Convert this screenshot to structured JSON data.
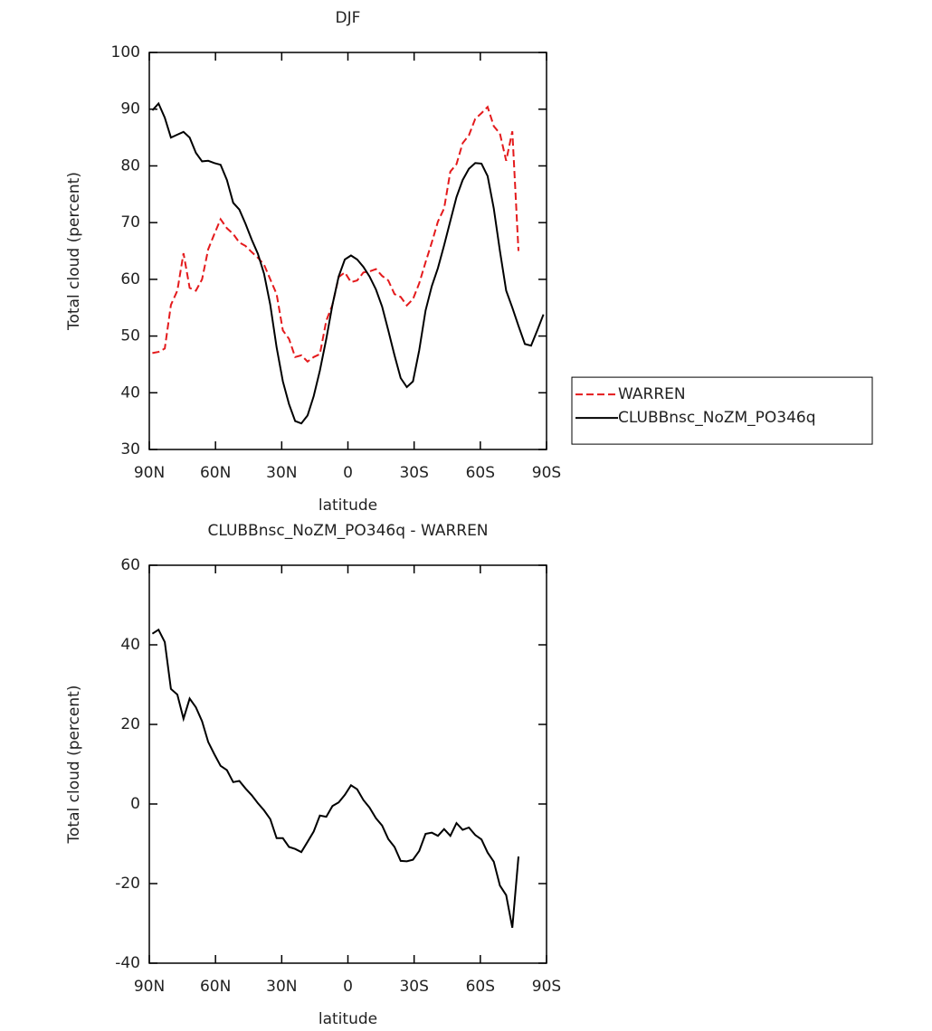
{
  "chart_data": [
    {
      "type": "line",
      "title": "DJF",
      "xlabel": "latitude",
      "ylabel": "Total cloud (percent)",
      "x": [
        88.6,
        85.8,
        83.0,
        80.2,
        77.3,
        74.5,
        71.7,
        68.9,
        66.1,
        63.3,
        60.5,
        57.7,
        54.8,
        52.0,
        49.2,
        46.4,
        43.6,
        40.8,
        38.0,
        35.2,
        32.3,
        29.5,
        26.7,
        23.9,
        21.1,
        18.3,
        15.5,
        12.7,
        9.8,
        7.0,
        4.2,
        1.4,
        -1.4,
        -4.2,
        -7.0,
        -9.8,
        -12.7,
        -15.5,
        -18.3,
        -21.1,
        -23.9,
        -26.7,
        -29.5,
        -32.3,
        -35.2,
        -38.0,
        -40.8,
        -43.6,
        -46.4,
        -49.2,
        -52.0,
        -54.8,
        -57.7,
        -60.5,
        -63.3,
        -66.1,
        -68.9,
        -71.7,
        -74.5,
        -77.3,
        -80.2,
        -83.0,
        -85.8,
        -88.6
      ],
      "series": [
        {
          "name": "WARREN",
          "color": "#e41a1c",
          "dashed": true,
          "values": [
            47,
            47.2,
            47.8,
            55.5,
            58,
            64.6,
            58.5,
            58,
            60,
            65.3,
            68,
            70.6,
            69,
            68,
            66.5,
            65.9,
            64.8,
            63.8,
            62.6,
            60,
            57.4,
            51,
            49.5,
            46.3,
            46.6,
            45.5,
            46.3,
            46.8,
            52.7,
            55.5,
            60.4,
            61.2,
            59.5,
            59.8,
            61.2,
            61.4,
            61.8,
            60.6,
            59.8,
            57.4,
            56.9,
            55.4,
            56.5,
            59.3,
            63,
            66.5,
            70.2,
            72.5,
            79,
            80.3,
            84,
            85.4,
            88.3,
            89.3,
            90.4,
            87,
            85.7,
            80.9,
            86.1,
            65,
            null,
            null,
            null,
            null
          ]
        },
        {
          "name": "CLUBBnsc_NoZM_PO346q",
          "color": "#000000",
          "dashed": false,
          "values": [
            89.8,
            91,
            88.5,
            85,
            85.5,
            86,
            85,
            82.3,
            80.8,
            80.9,
            80.5,
            80.2,
            77.5,
            73.5,
            72.3,
            69.8,
            67,
            64.5,
            61,
            55.5,
            48,
            42,
            38,
            35,
            34.6,
            36,
            39.4,
            43.9,
            49.5,
            55.5,
            60.5,
            63.5,
            64.2,
            63.5,
            62.2,
            60.5,
            58.2,
            55.2,
            51,
            46.6,
            42.6,
            41,
            42,
            47.5,
            54.5,
            58.8,
            62,
            66,
            70.3,
            74.5,
            77.5,
            79.5,
            80.5,
            80.4,
            78.2,
            72.5,
            65,
            58,
            55,
            51.8,
            48.6,
            48.3,
            51,
            53.8
          ]
        }
      ],
      "xlim": [
        90,
        -90
      ],
      "xticks": [
        {
          "value": 90,
          "label": "90N"
        },
        {
          "value": 60,
          "label": "60N"
        },
        {
          "value": 30,
          "label": "30N"
        },
        0,
        {
          "value": -30,
          "label": "30S"
        },
        {
          "value": -60,
          "label": "60S"
        },
        {
          "value": -90,
          "label": "90S"
        }
      ],
      "ylim": [
        30,
        100
      ],
      "yticks": [
        30,
        40,
        50,
        60,
        70,
        80,
        90,
        100
      ],
      "legend": "right"
    },
    {
      "type": "line",
      "title": "CLUBBnsc_NoZM_PO346q - WARREN",
      "xlabel": "latitude",
      "ylabel": "Total cloud (percent)",
      "x": [
        88.6,
        85.8,
        83.0,
        80.2,
        77.3,
        74.5,
        71.7,
        68.9,
        66.1,
        63.3,
        60.5,
        57.7,
        54.8,
        52.0,
        49.2,
        46.4,
        43.6,
        40.8,
        38.0,
        35.2,
        32.3,
        29.5,
        26.7,
        23.9,
        21.1,
        18.3,
        15.5,
        12.7,
        9.8,
        7.0,
        4.2,
        1.4,
        -1.4,
        -4.2,
        -7.0,
        -9.8,
        -12.7,
        -15.5,
        -18.3,
        -21.1,
        -23.9,
        -26.7,
        -29.5,
        -32.3,
        -35.2,
        -38.0,
        -40.8,
        -43.6,
        -46.4,
        -49.2,
        -52.0,
        -54.8,
        -57.7,
        -60.5,
        -63.3,
        -66.1,
        -68.9,
        -71.7,
        -74.5,
        -77.3,
        -80.2,
        -83.0,
        -85.8,
        -88.6
      ],
      "series": [
        {
          "color": "#000000",
          "dashed": false,
          "values": [
            42.8,
            43.8,
            40.7,
            28.9,
            27.5,
            21.4,
            26.5,
            24.3,
            20.8,
            15.6,
            12.5,
            9.6,
            8.5,
            5.5,
            5.8,
            3.9,
            2.2,
            0.2,
            -1.6,
            -3.8,
            -8.6,
            -8.6,
            -10.8,
            -11.3,
            -12.1,
            -9.5,
            -6.9,
            -2.9,
            -3.2,
            -0.5,
            0.4,
            2.3,
            4.7,
            3.7,
            1,
            -0.9,
            -3.6,
            -5.4,
            -8.8,
            -10.8,
            -14.3,
            -14.4,
            -14,
            -11.8,
            -7.5,
            -7.2,
            -8,
            -6.3,
            -8,
            -4.8,
            -6.5,
            -5.9,
            -7.8,
            -8.9,
            -12.2,
            -14.5,
            -20.5,
            -22.9,
            -31.1,
            -13.2,
            null,
            null,
            null,
            null
          ]
        }
      ],
      "xlim": [
        90,
        -90
      ],
      "xticks": [
        {
          "value": 90,
          "label": "90N"
        },
        {
          "value": 60,
          "label": "60N"
        },
        {
          "value": 30,
          "label": "30N"
        },
        0,
        {
          "value": -30,
          "label": "30S"
        },
        {
          "value": -60,
          "label": "60S"
        },
        {
          "value": -90,
          "label": "90S"
        }
      ],
      "ylim": [
        -40,
        60
      ],
      "yticks": [
        -40,
        -20,
        0,
        20,
        40,
        60
      ]
    }
  ]
}
